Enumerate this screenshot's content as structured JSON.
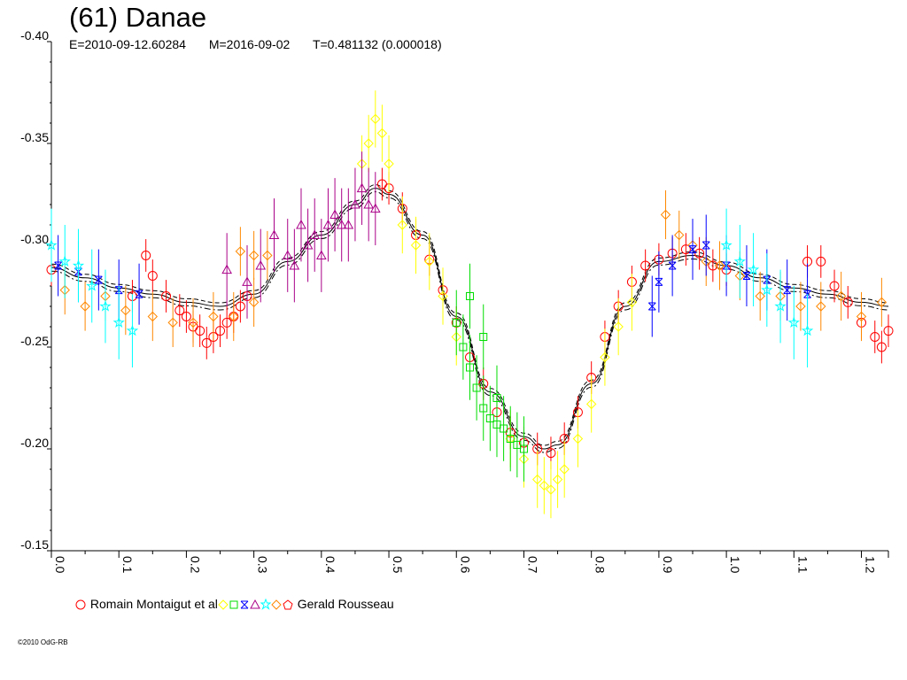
{
  "title": "(61) Danae",
  "subtitle": {
    "epoch": "E=2010-09-12.60284",
    "modified": "M=2016-09-02",
    "period": "T=0.481132 (0.000018)"
  },
  "legend": {
    "first_author": "Romain Montaigut et al",
    "last_author": "Gerald Rousseau"
  },
  "copyright": "©2010 OdG-RB",
  "chart_data": {
    "type": "scatter",
    "title": "(61) Danae",
    "xlabel": "",
    "ylabel": "",
    "xlim": [
      0.0,
      1.24
    ],
    "ylim": [
      -0.4,
      -0.15
    ],
    "y_inverted": true,
    "x_ticks": [
      "0.0",
      "0.1",
      "0.2",
      "0.3",
      "0.4",
      "0.5",
      "0.6",
      "0.7",
      "0.8",
      "0.9",
      "1.0",
      "1.1",
      "1.2"
    ],
    "y_ticks": [
      "-0.40",
      "-0.35",
      "-0.30",
      "-0.25",
      "-0.20",
      "-0.15"
    ],
    "colors": {
      "red": "#ff0000",
      "orange": "#ff8800",
      "yellow": "#ffff00",
      "green": "#00dd00",
      "blue": "#0000ff",
      "purple": "#aa0088",
      "cyan": "#00ffff",
      "fit": "#000000"
    },
    "series": [
      {
        "color": "red",
        "marker": "circle",
        "error": 0.008,
        "points": [
          [
            0.0,
            -0.288
          ],
          [
            0.12,
            -0.275
          ],
          [
            0.14,
            -0.295
          ],
          [
            0.15,
            -0.285
          ],
          [
            0.17,
            -0.275
          ],
          [
            0.19,
            -0.268
          ],
          [
            0.2,
            -0.265
          ],
          [
            0.21,
            -0.26
          ],
          [
            0.22,
            -0.258
          ],
          [
            0.23,
            -0.252
          ],
          [
            0.24,
            -0.255
          ],
          [
            0.25,
            -0.258
          ],
          [
            0.26,
            -0.262
          ],
          [
            0.27,
            -0.265
          ],
          [
            0.28,
            -0.27
          ],
          [
            0.29,
            -0.275
          ],
          [
            0.49,
            -0.33
          ],
          [
            0.5,
            -0.328
          ],
          [
            0.52,
            -0.318
          ],
          [
            0.54,
            -0.305
          ],
          [
            0.56,
            -0.293
          ],
          [
            0.58,
            -0.278
          ],
          [
            0.6,
            -0.262
          ],
          [
            0.62,
            -0.245
          ],
          [
            0.64,
            -0.232
          ],
          [
            0.66,
            -0.218
          ],
          [
            0.68,
            -0.208
          ],
          [
            0.7,
            -0.203
          ],
          [
            0.72,
            -0.2
          ],
          [
            0.74,
            -0.198
          ],
          [
            0.76,
            -0.205
          ],
          [
            0.78,
            -0.218
          ],
          [
            0.8,
            -0.235
          ],
          [
            0.82,
            -0.255
          ],
          [
            0.84,
            -0.27
          ],
          [
            0.86,
            -0.282
          ],
          [
            0.88,
            -0.29
          ],
          [
            0.9,
            -0.293
          ],
          [
            0.92,
            -0.296
          ],
          [
            0.94,
            -0.298
          ],
          [
            0.96,
            -0.296
          ],
          [
            0.98,
            -0.29
          ],
          [
            1.0,
            -0.288
          ],
          [
            1.12,
            -0.292
          ],
          [
            1.14,
            -0.292
          ],
          [
            1.16,
            -0.28
          ],
          [
            1.18,
            -0.272
          ],
          [
            1.2,
            -0.262
          ],
          [
            1.22,
            -0.255
          ],
          [
            1.23,
            -0.25
          ],
          [
            1.24,
            -0.258
          ]
        ]
      },
      {
        "color": "orange",
        "marker": "diamond",
        "error": 0.012,
        "points": [
          [
            0.02,
            -0.278
          ],
          [
            0.05,
            -0.27
          ],
          [
            0.08,
            -0.275
          ],
          [
            0.11,
            -0.268
          ],
          [
            0.15,
            -0.265
          ],
          [
            0.18,
            -0.262
          ],
          [
            0.21,
            -0.262
          ],
          [
            0.24,
            -0.265
          ],
          [
            0.27,
            -0.265
          ],
          [
            0.3,
            -0.272
          ],
          [
            0.3,
            -0.295
          ],
          [
            0.28,
            -0.297
          ],
          [
            0.32,
            -0.295
          ],
          [
            0.91,
            -0.315
          ],
          [
            0.93,
            -0.305
          ],
          [
            0.95,
            -0.3
          ],
          [
            0.97,
            -0.292
          ],
          [
            0.99,
            -0.29
          ],
          [
            1.02,
            -0.285
          ],
          [
            1.05,
            -0.275
          ],
          [
            1.08,
            -0.275
          ],
          [
            1.11,
            -0.27
          ],
          [
            1.14,
            -0.27
          ],
          [
            1.17,
            -0.275
          ],
          [
            1.2,
            -0.265
          ],
          [
            1.23,
            -0.272
          ]
        ]
      },
      {
        "color": "yellow",
        "marker": "diamond",
        "error": 0.014,
        "points": [
          [
            0.46,
            -0.34
          ],
          [
            0.47,
            -0.35
          ],
          [
            0.48,
            -0.362
          ],
          [
            0.49,
            -0.355
          ],
          [
            0.5,
            -0.34
          ],
          [
            0.52,
            -0.31
          ],
          [
            0.54,
            -0.3
          ],
          [
            0.56,
            -0.292
          ],
          [
            0.58,
            -0.275
          ],
          [
            0.6,
            -0.255
          ],
          [
            0.68,
            -0.205
          ],
          [
            0.7,
            -0.195
          ],
          [
            0.72,
            -0.185
          ],
          [
            0.73,
            -0.182
          ],
          [
            0.74,
            -0.18
          ],
          [
            0.75,
            -0.185
          ],
          [
            0.76,
            -0.19
          ],
          [
            0.78,
            -0.205
          ],
          [
            0.8,
            -0.222
          ],
          [
            0.82,
            -0.245
          ],
          [
            0.84,
            -0.26
          ],
          [
            0.86,
            -0.272
          ]
        ]
      },
      {
        "color": "green",
        "marker": "square",
        "error": 0.016,
        "points": [
          [
            0.6,
            -0.262
          ],
          [
            0.61,
            -0.25
          ],
          [
            0.62,
            -0.24
          ],
          [
            0.63,
            -0.23
          ],
          [
            0.64,
            -0.22
          ],
          [
            0.65,
            -0.215
          ],
          [
            0.66,
            -0.212
          ],
          [
            0.67,
            -0.21
          ],
          [
            0.68,
            -0.205
          ],
          [
            0.69,
            -0.202
          ],
          [
            0.7,
            -0.2
          ],
          [
            0.62,
            -0.275
          ],
          [
            0.64,
            -0.255
          ],
          [
            0.66,
            -0.225
          ]
        ]
      },
      {
        "color": "blue",
        "marker": "bowtie",
        "error": 0.015,
        "points": [
          [
            0.01,
            -0.29
          ],
          [
            0.04,
            -0.287
          ],
          [
            0.07,
            -0.283
          ],
          [
            0.1,
            -0.278
          ],
          [
            0.13,
            -0.276
          ],
          [
            0.89,
            -0.27
          ],
          [
            0.9,
            -0.282
          ],
          [
            0.92,
            -0.29
          ],
          [
            0.95,
            -0.298
          ],
          [
            0.97,
            -0.3
          ],
          [
            1.0,
            -0.29
          ],
          [
            1.03,
            -0.285
          ],
          [
            1.06,
            -0.283
          ],
          [
            1.09,
            -0.278
          ],
          [
            1.12,
            -0.276
          ]
        ]
      },
      {
        "color": "purple",
        "marker": "triangle",
        "error": 0.018,
        "points": [
          [
            0.26,
            -0.288
          ],
          [
            0.29,
            -0.282
          ],
          [
            0.31,
            -0.29
          ],
          [
            0.33,
            -0.305
          ],
          [
            0.35,
            -0.295
          ],
          [
            0.36,
            -0.29
          ],
          [
            0.37,
            -0.31
          ],
          [
            0.38,
            -0.3
          ],
          [
            0.39,
            -0.305
          ],
          [
            0.4,
            -0.295
          ],
          [
            0.41,
            -0.31
          ],
          [
            0.42,
            -0.315
          ],
          [
            0.43,
            -0.31
          ],
          [
            0.44,
            -0.31
          ],
          [
            0.45,
            -0.32
          ],
          [
            0.46,
            -0.328
          ],
          [
            0.47,
            -0.32
          ],
          [
            0.48,
            -0.318
          ]
        ]
      },
      {
        "color": "cyan",
        "marker": "star",
        "error": 0.018,
        "points": [
          [
            0.0,
            -0.3
          ],
          [
            0.02,
            -0.292
          ],
          [
            0.04,
            -0.29
          ],
          [
            0.06,
            -0.28
          ],
          [
            0.08,
            -0.27
          ],
          [
            0.1,
            -0.262
          ],
          [
            0.12,
            -0.258
          ],
          [
            1.0,
            -0.3
          ],
          [
            1.02,
            -0.292
          ],
          [
            1.04,
            -0.288
          ],
          [
            1.06,
            -0.278
          ],
          [
            1.08,
            -0.27
          ],
          [
            1.1,
            -0.262
          ],
          [
            1.12,
            -0.258
          ]
        ]
      }
    ],
    "fit_model": {
      "style": [
        "solid",
        "dashed",
        "dashdot"
      ],
      "points": [
        [
          0.0,
          -0.289
        ],
        [
          0.05,
          -0.284
        ],
        [
          0.1,
          -0.279
        ],
        [
          0.15,
          -0.276
        ],
        [
          0.2,
          -0.272
        ],
        [
          0.25,
          -0.27
        ],
        [
          0.3,
          -0.276
        ],
        [
          0.35,
          -0.292
        ],
        [
          0.4,
          -0.305
        ],
        [
          0.45,
          -0.32
        ],
        [
          0.48,
          -0.328
        ],
        [
          0.5,
          -0.325
        ],
        [
          0.55,
          -0.305
        ],
        [
          0.6,
          -0.265
        ],
        [
          0.65,
          -0.228
        ],
        [
          0.7,
          -0.206
        ],
        [
          0.73,
          -0.2
        ],
        [
          0.75,
          -0.202
        ],
        [
          0.8,
          -0.232
        ],
        [
          0.85,
          -0.27
        ],
        [
          0.9,
          -0.292
        ],
        [
          0.95,
          -0.295
        ],
        [
          1.0,
          -0.29
        ],
        [
          1.05,
          -0.284
        ],
        [
          1.1,
          -0.279
        ],
        [
          1.15,
          -0.276
        ],
        [
          1.2,
          -0.272
        ],
        [
          1.24,
          -0.27
        ]
      ]
    }
  }
}
